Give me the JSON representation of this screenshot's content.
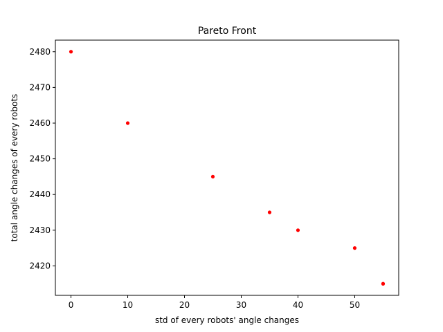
{
  "chart_data": {
    "type": "scatter",
    "title": "Pareto Front",
    "xlabel": "std of every robots' angle changes",
    "ylabel": "total angle changes of every robots",
    "xlim": [
      -2.75,
      57.75
    ],
    "ylim": [
      2411.75,
      2483.25
    ],
    "xticks": [
      0,
      10,
      20,
      30,
      40,
      50
    ],
    "yticks": [
      2420,
      2430,
      2440,
      2450,
      2460,
      2470,
      2480
    ],
    "grid": false,
    "point_color": "#ff0000",
    "series": [
      {
        "x": [
          0,
          10,
          25,
          35,
          40,
          50,
          55,
          55
        ],
        "y": [
          2480,
          2460,
          2445,
          2435,
          2430,
          2425,
          2415,
          2415
        ]
      }
    ]
  }
}
